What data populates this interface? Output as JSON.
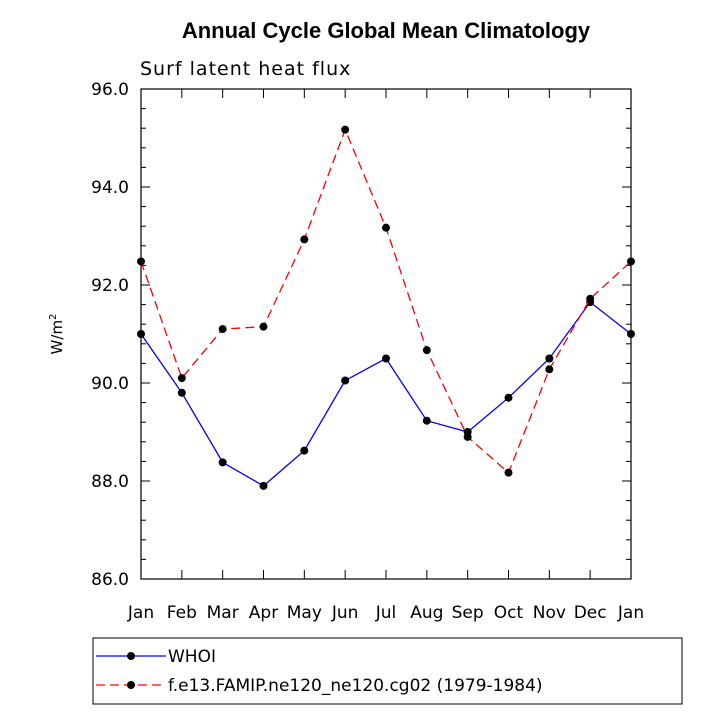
{
  "chart_data": {
    "type": "line",
    "title": "Annual Cycle Global Mean Climatology",
    "subtitle": "Surf latent heat flux",
    "xlabel": "",
    "ylabel": "W/m",
    "ylabel_superscript": "2",
    "categories": [
      "Jan",
      "Feb",
      "Mar",
      "Apr",
      "May",
      "Jun",
      "Jul",
      "Aug",
      "Sep",
      "Oct",
      "Nov",
      "Dec",
      "Jan"
    ],
    "ylim": [
      86.0,
      96.0
    ],
    "yticks": [
      86.0,
      88.0,
      90.0,
      92.0,
      94.0,
      96.0
    ],
    "ytick_labels": [
      "86.0",
      "88.0",
      "90.0",
      "92.0",
      "94.0",
      "96.0"
    ],
    "grid": false,
    "legend_position": "bottom",
    "series": [
      {
        "name": "WHOI",
        "color": "#0000ff",
        "dash": "solid",
        "values": [
          91.0,
          89.8,
          88.38,
          87.9,
          88.62,
          90.05,
          90.5,
          89.23,
          89.0,
          89.7,
          90.5,
          91.65,
          91.0
        ]
      },
      {
        "name": "f.e13.FAMIP.ne120_ne120.cg02 (1979-1984)",
        "color": "#ff0000",
        "dash": "dashed",
        "values": [
          92.48,
          90.1,
          91.1,
          91.15,
          92.93,
          95.17,
          93.17,
          90.67,
          88.9,
          88.17,
          90.28,
          91.72,
          92.48
        ]
      }
    ]
  }
}
